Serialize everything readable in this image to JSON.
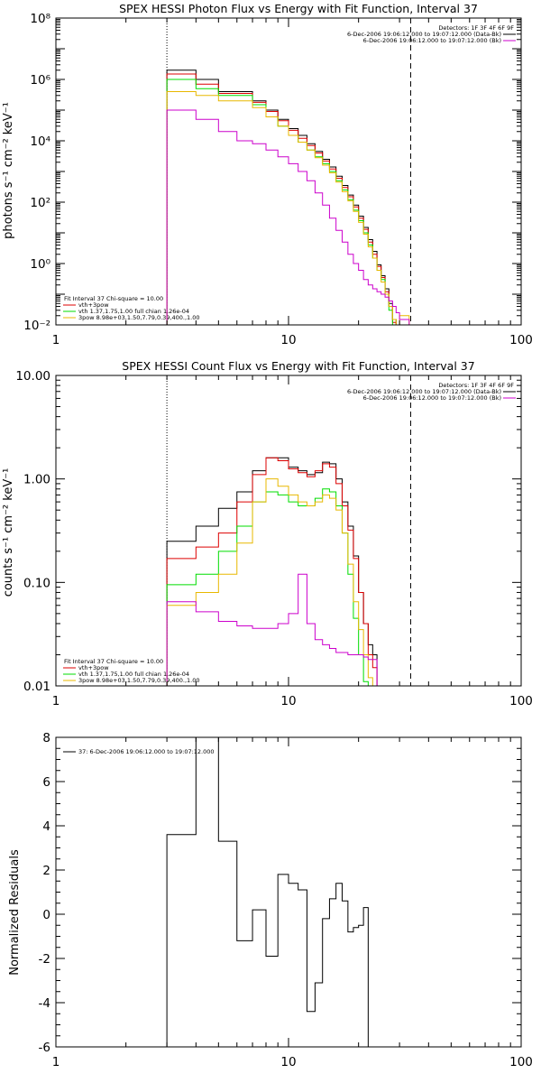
{
  "colors": {
    "black": "#000000",
    "red": "#dd0000",
    "green": "#00dd00",
    "yellow": "#e8b800",
    "magenta": "#cc00cc"
  },
  "chart_data": [
    {
      "type": "line",
      "title": "SPEX HESSI Photon Flux vs Energy with Fit Function, Interval 37",
      "ylabel": "photons s⁻¹ cm⁻² keV⁻¹",
      "xlabel": "",
      "xscale": "log",
      "yscale": "log",
      "xlim": [
        1,
        100
      ],
      "ylim": [
        0.01,
        100000000
      ],
      "xticks": [
        {
          "v": 1,
          "label": "1"
        },
        {
          "v": 10,
          "label": "10"
        },
        {
          "v": 100,
          "label": "100"
        }
      ],
      "yticks": [
        {
          "v": 0.01,
          "label": "10⁻²"
        },
        {
          "v": 1,
          "label": "10⁰"
        },
        {
          "v": 100,
          "label": "10²"
        },
        {
          "v": 10000,
          "label": "10⁴"
        },
        {
          "v": 1000000,
          "label": "10⁶"
        },
        {
          "v": 100000000,
          "label": "10⁸"
        }
      ],
      "edges": [
        3,
        4,
        5,
        6,
        7,
        8,
        9,
        10,
        11,
        12,
        13,
        14,
        15,
        16,
        17,
        18,
        19,
        20,
        21,
        22,
        23,
        24,
        25,
        26,
        27,
        28,
        29,
        30,
        33,
        37,
        43
      ],
      "vlines": [
        {
          "x": 3,
          "style": "dotted"
        },
        {
          "x": 33.5,
          "style": "dashed"
        }
      ],
      "detectors_label": "Detectors: 1F 3F 4F 6F 9F",
      "legend_right": [
        {
          "text": "6-Dec-2006 19:06:12.000 to 19:07:12.000 (Data-Bk)",
          "color": "#000000"
        },
        {
          "text": "6-Dec-2006 19:06:12.000 to 19:07:12.000 (Bk)",
          "color": "#cc00cc"
        }
      ],
      "legend_left": [
        {
          "text": "Fit Interval 37    Chi-square = 10.00",
          "color": "#000000"
        },
        {
          "text": "vth+3pow",
          "color": "#dd0000"
        },
        {
          "text": "vth 1.37,1.75,1.00  full chian 1.26e-04",
          "color": "#00dd00"
        },
        {
          "text": "3pow 8.98e+03,1.50,7.79,0.39,400.,1.00",
          "color": "#e8b800"
        }
      ],
      "series": [
        {
          "color": "#000000",
          "values": [
            2000000,
            1000000,
            400000,
            400000,
            200000,
            100000,
            50000,
            25000,
            15000,
            8000,
            4500,
            2500,
            1400,
            700,
            350,
            170,
            80,
            35,
            15,
            6,
            2.5,
            0.9,
            0.4,
            0.15,
            0.05,
            0.015,
            0.005
          ]
        },
        {
          "color": "#dd0000",
          "values": [
            1500000,
            700000,
            350000,
            350000,
            180000,
            90000,
            45000,
            22000,
            12000,
            7000,
            4000,
            2200,
            1200,
            600,
            300,
            150,
            70,
            30,
            13,
            5,
            2,
            0.8,
            0.35,
            0.12,
            0.04,
            0.012,
            0.004
          ]
        },
        {
          "color": "#00dd00",
          "values": [
            1000000,
            500000,
            300000,
            300000,
            150000,
            60000,
            30000,
            15000,
            9000,
            5000,
            3000,
            1800,
            1000,
            500,
            250,
            120,
            55,
            25,
            10,
            4,
            1.5,
            0.6,
            0.3,
            0.1,
            0.03,
            0.008
          ]
        },
        {
          "color": "#e8b800",
          "values": [
            400000,
            300000,
            200000,
            200000,
            120000,
            60000,
            30000,
            15000,
            9000,
            5000,
            2800,
            1600,
            900,
            450,
            220,
            110,
            50,
            22,
            9,
            3.5,
            1.5,
            0.6,
            0.25,
            0.1,
            0.04,
            0.015,
            0.005,
            0.02,
            0.008,
            0.004
          ]
        },
        {
          "color": "#cc00cc",
          "values": [
            100000,
            50000,
            20000,
            10000,
            8000,
            5000,
            3000,
            1800,
            1000,
            500,
            200,
            80,
            30,
            12,
            5,
            2,
            1,
            0.6,
            0.3,
            0.2,
            0.15,
            0.12,
            0.1,
            0.08,
            0.06,
            0.04,
            0.025,
            0.015
          ]
        }
      ]
    },
    {
      "type": "line",
      "title": "SPEX HESSI Count Flux vs Energy with Fit Function, Interval 37",
      "ylabel": "counts s⁻¹ cm⁻² keV⁻¹",
      "xlabel": "",
      "xscale": "log",
      "yscale": "log",
      "xlim": [
        1,
        100
      ],
      "ylim": [
        0.01,
        10
      ],
      "xticks": [
        {
          "v": 1,
          "label": "1"
        },
        {
          "v": 10,
          "label": "10"
        },
        {
          "v": 100,
          "label": "100"
        }
      ],
      "yticks": [
        {
          "v": 0.01,
          "label": "0.01"
        },
        {
          "v": 0.1,
          "label": "0.10"
        },
        {
          "v": 1,
          "label": "1.00"
        },
        {
          "v": 10,
          "label": "10.00"
        }
      ],
      "edges": [
        3,
        4,
        5,
        6,
        7,
        8,
        9,
        10,
        11,
        12,
        13,
        14,
        15,
        16,
        17,
        18,
        19,
        20,
        21,
        22,
        23,
        24,
        25,
        26,
        27,
        28,
        29,
        30,
        33
      ],
      "vlines": [
        {
          "x": 3,
          "style": "dotted"
        },
        {
          "x": 33.5,
          "style": "dashed"
        }
      ],
      "detectors_label": "Detectors: 1F 3F 4F 6F 9F",
      "legend_right": [
        {
          "text": "6-Dec-2006 19:06:12.000 to 19:07:12.000 (Data-Bk)",
          "color": "#000000"
        },
        {
          "text": "6-Dec-2006 19:06:12.000 to 19:07:12.000 (Bk)",
          "color": "#cc00cc"
        }
      ],
      "legend_left": [
        {
          "text": "Fit Interval 37    Chi-square = 10.00",
          "color": "#000000"
        },
        {
          "text": "vth+3pow",
          "color": "#dd0000"
        },
        {
          "text": "vth 1.37,1.75,1.00  full chian 1.26e-04",
          "color": "#00dd00"
        },
        {
          "text": "3pow 8.98e+03,1.50,7.79,0.39,400.,1.00",
          "color": "#e8b800"
        }
      ],
      "series": [
        {
          "color": "#000000",
          "values": [
            0.25,
            0.35,
            0.52,
            0.75,
            1.2,
            1.6,
            1.6,
            1.3,
            1.2,
            1.1,
            1.15,
            1.45,
            1.4,
            1.0,
            0.6,
            0.35,
            0.18,
            0.08,
            0.04,
            0.025,
            0.02
          ]
        },
        {
          "color": "#dd0000",
          "values": [
            0.17,
            0.22,
            0.3,
            0.6,
            1.1,
            1.6,
            1.5,
            1.25,
            1.15,
            1.05,
            1.2,
            1.4,
            1.3,
            0.9,
            0.55,
            0.32,
            0.17,
            0.08,
            0.04,
            0.02,
            0.015
          ]
        },
        {
          "color": "#00dd00",
          "values": [
            0.095,
            0.12,
            0.2,
            0.35,
            0.6,
            0.75,
            0.7,
            0.6,
            0.55,
            0.55,
            0.65,
            0.8,
            0.75,
            0.55,
            0.3,
            0.12,
            0.045,
            0.02,
            0.011,
            0.008
          ]
        },
        {
          "color": "#e8b800",
          "values": [
            0.06,
            0.08,
            0.12,
            0.24,
            0.6,
            1.0,
            0.85,
            0.7,
            0.6,
            0.55,
            0.6,
            0.7,
            0.65,
            0.5,
            0.3,
            0.15,
            0.065,
            0.035,
            0.02,
            0.012,
            0.009
          ]
        },
        {
          "color": "#cc00cc",
          "values": [
            0.065,
            0.052,
            0.042,
            0.038,
            0.036,
            0.036,
            0.04,
            0.05,
            0.12,
            0.04,
            0.028,
            0.025,
            0.023,
            0.021,
            0.021,
            0.02,
            0.02,
            0.02,
            0.019,
            0.018,
            0.018
          ]
        }
      ]
    },
    {
      "type": "line",
      "title": "",
      "ylabel": "Normalized Residuals",
      "xlabel": "",
      "xscale": "log",
      "yscale": "linear",
      "xlim": [
        1,
        100
      ],
      "ylim": [
        -6,
        8
      ],
      "xticks": [
        {
          "v": 1,
          "label": "1"
        },
        {
          "v": 10,
          "label": "10"
        },
        {
          "v": 100,
          "label": "100"
        }
      ],
      "yticks": [
        {
          "v": -6,
          "label": "-6"
        },
        {
          "v": -4,
          "label": "-4"
        },
        {
          "v": -2,
          "label": "-2"
        },
        {
          "v": 0,
          "label": "0"
        },
        {
          "v": 2,
          "label": "2"
        },
        {
          "v": 4,
          "label": "4"
        },
        {
          "v": 6,
          "label": "6"
        },
        {
          "v": 8,
          "label": "8"
        }
      ],
      "edges": [
        3,
        4,
        5,
        6,
        7,
        8,
        9,
        10,
        11,
        12,
        13,
        14,
        15,
        16,
        17,
        18,
        19,
        20,
        21,
        22,
        23,
        24,
        25,
        26,
        27,
        28,
        29,
        30,
        33
      ],
      "legend_left": [
        {
          "text": "37:  6-Dec-2006 19:06:12.000 to 19:07:12.000",
          "color": "#000000"
        }
      ],
      "series": [
        {
          "color": "#000000",
          "values": [
            3.6,
            8.1,
            3.3,
            -1.2,
            0.2,
            -1.9,
            1.8,
            1.4,
            1.1,
            -4.4,
            -3.1,
            -0.2,
            0.7,
            1.4,
            0.6,
            -0.8,
            -0.6,
            -0.5,
            0.3
          ]
        }
      ]
    }
  ]
}
